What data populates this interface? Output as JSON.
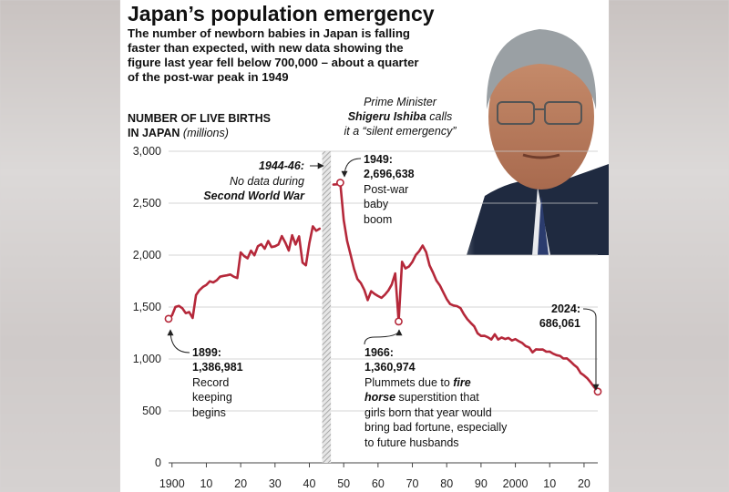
{
  "title": "Japan’s population emergency",
  "subtitle": "The number of newborn babies in Japan is falling faster than expected, with new data showing the figure last year fell below 700,000 – about a quarter of the post-war peak in 1949",
  "ylabel": {
    "line1": "NUMBER OF LIVE BIRTHS",
    "line2": "IN JAPAN",
    "unit": "(millions)"
  },
  "pm_caption": {
    "line1": "Prime Minister",
    "name": "Shigeru Ishiba",
    "line2_suffix": " calls",
    "line3": "it a “silent emergency”"
  },
  "annotations": {
    "war": {
      "line1": "1944-46:",
      "line2": "No data during",
      "line3": "Second World War"
    },
    "peak": {
      "line1": "1949:",
      "line2": "2,696,638",
      "line3": "Post-war",
      "line4": "baby",
      "line5": "boom"
    },
    "start": {
      "line1": "1899:",
      "line2": "1,386,981",
      "line3": "Record",
      "line4": "keeping",
      "line5": "begins"
    },
    "fire_horse": {
      "line1": "1966:",
      "line2": "1,360,974",
      "line3a": "Plummets due to ",
      "line3b": "fire",
      "line4a": "horse",
      "line4b": " superstition that",
      "line5": "girls born that year would",
      "line6": "bring bad fortune, especially",
      "line7": "to future husbands"
    },
    "latest": {
      "line1": "2024:",
      "line2": "686,061"
    }
  },
  "colors": {
    "line": "#b5283a",
    "grid": "#c9c9c9",
    "hatch": "#9a9a9a"
  },
  "chart_data": {
    "type": "line",
    "title": "Japan’s population emergency",
    "ylabel": "NUMBER OF LIVE BIRTHS IN JAPAN (millions)",
    "ylim": [
      0,
      3000
    ],
    "xlim": [
      1899,
      2024
    ],
    "yticks": [
      0,
      500,
      1000,
      1500,
      2000,
      2500,
      3000
    ],
    "ytick_labels": [
      "0",
      "500",
      "1,000",
      "1,500",
      "2,000",
      "2,500",
      "3,000"
    ],
    "xticks": [
      1900,
      1910,
      1920,
      1930,
      1940,
      1950,
      1960,
      1970,
      1980,
      1990,
      2000,
      2010,
      2020
    ],
    "xtick_labels": [
      "1900",
      "10",
      "20",
      "30",
      "40",
      "50",
      "60",
      "70",
      "80",
      "90",
      "2000",
      "10",
      "20"
    ],
    "gap": [
      1944,
      1946
    ],
    "grid": true,
    "series": [
      {
        "x": [
          1899,
          1900,
          1901,
          1902,
          1903,
          1904,
          1905,
          1906,
          1907,
          1908,
          1909,
          1910,
          1911,
          1912,
          1913,
          1914,
          1915,
          1916,
          1917,
          1918,
          1919,
          1920,
          1921,
          1922,
          1923,
          1924,
          1925,
          1926,
          1927,
          1928,
          1929,
          1930,
          1931,
          1932,
          1933,
          1934,
          1935,
          1936,
          1937,
          1938,
          1939,
          1940,
          1941,
          1942,
          1943
        ],
        "y": [
          1387,
          1420,
          1501,
          1511,
          1489,
          1441,
          1452,
          1395,
          1615,
          1663,
          1694,
          1712,
          1748,
          1737,
          1758,
          1792,
          1800,
          1805,
          1813,
          1792,
          1779,
          2026,
          1991,
          1969,
          2043,
          1998,
          2086,
          2105,
          2061,
          2136,
          2077,
          2085,
          2103,
          2183,
          2121,
          2044,
          2191,
          2102,
          2181,
          1928,
          1902,
          2116,
          2277,
          2234,
          2254
        ]
      },
      {
        "x": [
          1947,
          1948,
          1949,
          1950,
          1951,
          1952,
          1953,
          1954,
          1955,
          1956,
          1957,
          1958,
          1959,
          1960,
          1961,
          1962,
          1963,
          1964,
          1965,
          1966,
          1967,
          1968,
          1969,
          1970,
          1971,
          1972,
          1973,
          1974,
          1975,
          1976,
          1977,
          1978,
          1979,
          1980,
          1981,
          1982,
          1983,
          1984,
          1985,
          1986,
          1987,
          1988,
          1989,
          1990,
          1991,
          1992,
          1993,
          1994,
          1995,
          1996,
          1997,
          1998,
          1999,
          2000,
          2001,
          2002,
          2003,
          2004,
          2005,
          2006,
          2007,
          2008,
          2009,
          2010,
          2011,
          2012,
          2013,
          2014,
          2015,
          2016,
          2017,
          2018,
          2019,
          2020,
          2021,
          2022,
          2023,
          2024
        ],
        "y": [
          2679,
          2682,
          2697,
          2338,
          2138,
          2005,
          1868,
          1770,
          1731,
          1665,
          1567,
          1653,
          1626,
          1606,
          1589,
          1619,
          1660,
          1717,
          1824,
          1361,
          1936,
          1872,
          1890,
          1934,
          2001,
          2039,
          2092,
          2030,
          1901,
          1833,
          1755,
          1709,
          1643,
          1577,
          1529,
          1515,
          1509,
          1490,
          1432,
          1383,
          1347,
          1314,
          1247,
          1222,
          1223,
          1209,
          1188,
          1238,
          1187,
          1207,
          1192,
          1203,
          1178,
          1191,
          1171,
          1154,
          1124,
          1111,
          1063,
          1093,
          1090,
          1091,
          1070,
          1071,
          1051,
          1037,
          1030,
          1004,
          1006,
          977,
          946,
          918,
          865,
          841,
          812,
          771,
          727,
          686
        ]
      }
    ],
    "highlight_points": [
      {
        "x": 1899,
        "y": 1387
      },
      {
        "x": 1949,
        "y": 2697
      },
      {
        "x": 1966,
        "y": 1361
      },
      {
        "x": 2024,
        "y": 686
      }
    ]
  }
}
